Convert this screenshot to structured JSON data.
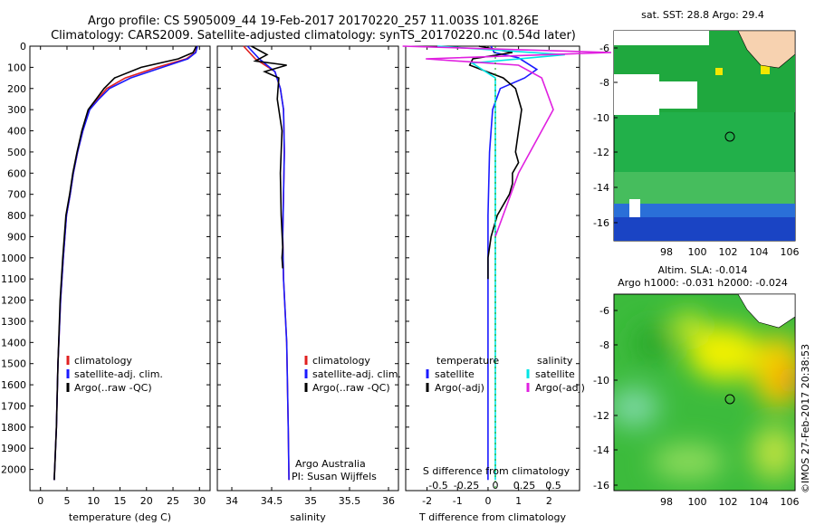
{
  "title_line1": "Argo profile: CS 5905009_44 19-Feb-2017 20170220_257 11.003S 101.826E",
  "title_line2": "Climatology: CARS2009. Satellite-adjusted climatology: synTS_20170220.nc (0.54d later)",
  "colors": {
    "climatology": "#e02020",
    "satellite": "#1a1aff",
    "argo": "#000000",
    "sat_salinity": "#00e5e5",
    "argo_adj": "#e020e0"
  },
  "chart_data": [
    {
      "type": "line",
      "xlabel": "temperature (deg C)",
      "xticks": [
        "0",
        "5",
        "10",
        "15",
        "20",
        "25",
        "30"
      ],
      "xlim": [
        -2,
        32
      ],
      "ylim": [
        0,
        2100
      ],
      "yticks": [
        "0",
        "100",
        "200",
        "300",
        "400",
        "500",
        "600",
        "700",
        "800",
        "900",
        "1000",
        "1100",
        "1200",
        "1300",
        "1400",
        "1500",
        "1600",
        "1700",
        "1800",
        "1900",
        "2000"
      ],
      "legend": [
        {
          "label": "climatology",
          "color": "#e02020"
        },
        {
          "label": "satellite-adj. clim.",
          "color": "#1a1aff"
        },
        {
          "label": "Argo(..raw -QC)",
          "color": "#000000"
        }
      ],
      "series": [
        {
          "name": "climatology",
          "color": "#e02020",
          "x": [
            29.5,
            29.2,
            27.5,
            22,
            16,
            12.5,
            10.8,
            9.2,
            8.0,
            7.0,
            6.2,
            5.6,
            4.9,
            4.3,
            3.8,
            3.3,
            3.0,
            2.6
          ],
          "y": [
            0,
            30,
            60,
            100,
            150,
            200,
            250,
            300,
            400,
            500,
            600,
            700,
            800,
            1000,
            1200,
            1500,
            1800,
            2050
          ]
        },
        {
          "name": "satellite-adj. clim.",
          "color": "#1a1aff",
          "x": [
            29.6,
            29.3,
            27.8,
            23,
            17,
            13,
            11,
            9.3,
            8.0,
            7.0,
            6.2,
            5.6,
            4.9,
            4.3,
            3.8,
            3.3,
            3.0,
            2.6
          ],
          "y": [
            0,
            30,
            60,
            100,
            150,
            200,
            250,
            300,
            400,
            500,
            600,
            700,
            800,
            1000,
            1200,
            1500,
            1800,
            2050
          ]
        },
        {
          "name": "Argo(..raw -QC)",
          "color": "#000000",
          "x": [
            29.4,
            28.8,
            26,
            19,
            14,
            12,
            10.5,
            9.0,
            7.8,
            6.9,
            6.1,
            5.5,
            4.8,
            4.2,
            3.7,
            3.3,
            3.0,
            2.6
          ],
          "y": [
            0,
            30,
            60,
            100,
            150,
            200,
            250,
            300,
            400,
            500,
            600,
            700,
            800,
            1000,
            1200,
            1500,
            1800,
            2050
          ]
        }
      ]
    },
    {
      "type": "line",
      "xlabel": "salinity",
      "xticks": [
        "34",
        "34.5",
        "35",
        "35.5",
        "36"
      ],
      "xlim": [
        33.85,
        36.1
      ],
      "ylim": [
        0,
        2100
      ],
      "legend": [
        {
          "label": "climatology",
          "color": "#e02020"
        },
        {
          "label": "satellite-adj. clim.",
          "color": "#1a1aff"
        },
        {
          "label": "Argo(..raw -QC)",
          "color": "#000000"
        }
      ],
      "annotations": [
        "Argo Australia",
        "PI: Susan Wijffels"
      ],
      "series": [
        {
          "name": "climatology",
          "color": "#e02020",
          "x": [
            34.15,
            34.3,
            34.55,
            34.62,
            34.66,
            34.67,
            34.66,
            34.65,
            34.66,
            34.7,
            34.72,
            34.73
          ],
          "y": [
            0,
            60,
            120,
            200,
            300,
            500,
            700,
            900,
            1100,
            1400,
            1800,
            2050
          ]
        },
        {
          "name": "satellite-adj. clim.",
          "color": "#1a1aff",
          "x": [
            34.2,
            34.35,
            34.55,
            34.62,
            34.66,
            34.67,
            34.66,
            34.65,
            34.66,
            34.7,
            34.72,
            34.73
          ],
          "y": [
            0,
            60,
            120,
            200,
            300,
            500,
            700,
            900,
            1100,
            1400,
            1800,
            2050
          ]
        },
        {
          "name": "Argo(..raw -QC)",
          "color": "#000000",
          "x": [
            34.25,
            34.45,
            34.3,
            34.7,
            34.42,
            34.6,
            34.58,
            34.64,
            34.62,
            34.63,
            34.65,
            34.64,
            34.65
          ],
          "y": [
            0,
            40,
            70,
            90,
            120,
            150,
            250,
            400,
            600,
            800,
            950,
            1000,
            1050
          ]
        }
      ]
    },
    {
      "type": "line",
      "xlabel": "T difference from climatology",
      "xticks": [
        "-2",
        "-1",
        "0",
        "1",
        "2"
      ],
      "xlim": [
        -2.7,
        3.0
      ],
      "top_xlabel": "S difference from climatology",
      "top_xticks": [
        "-0.5",
        "-0.25",
        "0",
        "0.25",
        "0.5"
      ],
      "ylim": [
        0,
        2100
      ],
      "legend": [
        {
          "label": "temperature",
          "color": "#000000",
          "header": true
        },
        {
          "label": "satellite",
          "color": "#1a1aff"
        },
        {
          "label": "Argo(-adj)",
          "color": "#000000"
        },
        {
          "label": "salinity",
          "color": "#000000",
          "header": true
        },
        {
          "label": "satellite",
          "color": "#00e5e5"
        },
        {
          "label": "Argo(-adj)",
          "color": "#e020e0"
        }
      ],
      "series": [
        {
          "name": "temperature satellite",
          "color": "#1a1aff",
          "x": [
            0.1,
            0.2,
            1.0,
            1.6,
            1.2,
            0.4,
            0.15,
            0.05,
            0.0,
            0.0,
            0.0,
            0.0
          ],
          "y": [
            0,
            30,
            55,
            110,
            150,
            200,
            300,
            500,
            800,
            1200,
            1600,
            2050
          ]
        },
        {
          "name": "temperature Argo(-adj)",
          "color": "#000000",
          "x": [
            -0.3,
            0.8,
            -0.5,
            -0.6,
            0.5,
            0.9,
            1.1,
            1.0,
            0.9,
            1.0,
            0.8,
            0.8,
            0.7,
            0.3,
            0.1,
            0.0,
            0.0
          ],
          "y": [
            0,
            30,
            60,
            90,
            150,
            200,
            300,
            400,
            500,
            550,
            600,
            650,
            700,
            800,
            900,
            1000,
            1100
          ]
        },
        {
          "name": "salinity satellite",
          "color": "#00e5e5",
          "x": [
            -0.5,
            0.6,
            -0.2,
            0.0,
            0.0,
            0.0,
            0.0
          ],
          "y": [
            0,
            40,
            80,
            150,
            500,
            1200,
            2050
          ]
        },
        {
          "name": "salinity Argo(-adj)",
          "color": "#e020e0",
          "x": [
            -0.8,
            1.0,
            -0.6,
            0.2,
            0.4,
            0.5,
            0.3,
            0.2,
            0.1,
            0.0
          ],
          "y": [
            0,
            30,
            60,
            90,
            150,
            300,
            500,
            600,
            750,
            900
          ]
        }
      ]
    }
  ],
  "map_sst": {
    "title": "sat. SST: 28.8 Argo: 29.4",
    "yticks": [
      "-6",
      "-8",
      "-10",
      "-12",
      "-14",
      "-16"
    ],
    "xticks": [
      "98",
      "100",
      "102",
      "104",
      "106"
    ]
  },
  "map_sla": {
    "title_line1": "Altim. SLA: -0.014",
    "title_line2": "Argo h1000: -0.031 h2000: -0.024",
    "yticks": [
      "-6",
      "-8",
      "-10",
      "-12",
      "-14",
      "-16"
    ],
    "xticks": [
      "98",
      "100",
      "102",
      "104",
      "106"
    ]
  },
  "credit": "©IMOS 27-Feb-2017 20:38:53"
}
